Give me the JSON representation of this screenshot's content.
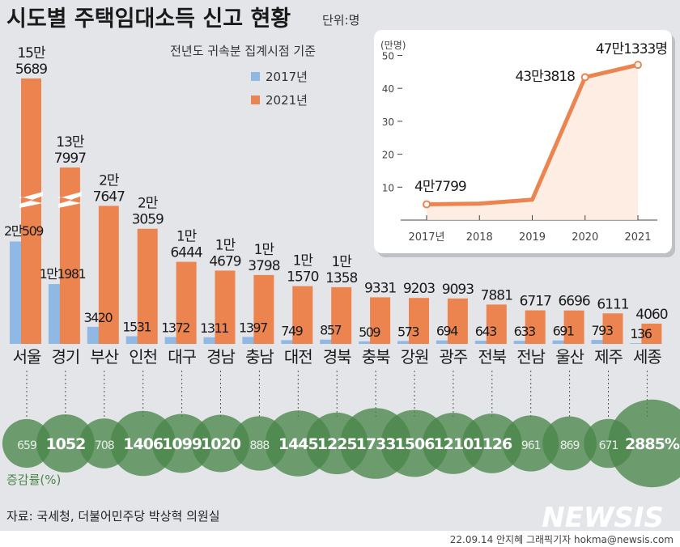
{
  "header": {
    "title": "시도별 주택임대소득 신고 현황",
    "unit": "단위:명",
    "subtitle": "전년도 귀속분 집계시점 기준"
  },
  "colors": {
    "y2017": "#8fb8e4",
    "y2021": "#ec8450",
    "bubble": "#4a864a",
    "background": "#e4e5e9"
  },
  "chart_data": [
    {
      "type": "bar",
      "title": "시도별 주택임대소득 신고 현황",
      "unit": "명",
      "legend": [
        "2017년",
        "2021년"
      ],
      "legend_position": "top-right",
      "categories": [
        "서울",
        "경기",
        "부산",
        "인천",
        "대구",
        "경남",
        "충남",
        "대전",
        "경북",
        "충북",
        "강원",
        "광주",
        "전북",
        "전남",
        "울산",
        "제주",
        "세종"
      ],
      "series": [
        {
          "name": "2017년",
          "values": [
            20509,
            11981,
            3420,
            1531,
            1372,
            1311,
            1397,
            749,
            857,
            509,
            573,
            694,
            643,
            633,
            691,
            793,
            136
          ],
          "labels": [
            "2만509",
            "1만1981",
            "3420",
            "1531",
            "1372",
            "1311",
            "1397",
            "749",
            "857",
            "509",
            "573",
            "694",
            "643",
            "633",
            "691",
            "793",
            "136"
          ]
        },
        {
          "name": "2021년",
          "values": [
            155689,
            137997,
            27647,
            23059,
            16444,
            14679,
            13798,
            11570,
            11358,
            9331,
            9203,
            9093,
            7881,
            6717,
            6696,
            6111,
            4060
          ],
          "labels": [
            [
              "15만",
              "5689"
            ],
            [
              "13만",
              "7997"
            ],
            [
              "2만",
              "7647"
            ],
            [
              "2만",
              "3059"
            ],
            [
              "1만",
              "6444"
            ],
            [
              "1만",
              "4679"
            ],
            [
              "1만",
              "3798"
            ],
            [
              "1만",
              "1570"
            ],
            [
              "1만",
              "1358"
            ],
            [
              "9331"
            ],
            [
              "9203"
            ],
            [
              "9093"
            ],
            [
              "7881"
            ],
            [
              "6717"
            ],
            [
              "6696"
            ],
            [
              "6111"
            ],
            [
              "4060"
            ]
          ]
        }
      ],
      "broken_axis_categories": [
        "서울",
        "경기"
      ],
      "growth_label": "증감률(%)",
      "growth_rate": [
        659,
        1052,
        708,
        1406,
        1099,
        1020,
        888,
        1445,
        1225,
        1733,
        1506,
        1210,
        1126,
        961,
        869,
        671,
        2885
      ],
      "growth_labels": [
        "659",
        "1052",
        "708",
        "1406",
        "1099",
        "1020",
        "888",
        "1445",
        "1225",
        "1733",
        "1506",
        "1210",
        "1126",
        "961",
        "869",
        "671",
        "2885%"
      ]
    },
    {
      "type": "line",
      "ylabel": "(만명)",
      "x": [
        "2017년",
        "2018",
        "2019",
        "2020",
        "2021"
      ],
      "values": [
        4.7799,
        5.0,
        6.2,
        43.3818,
        47.1333
      ],
      "point_labels": [
        "4만7799",
        "",
        "",
        "43만3818",
        "47만1333명"
      ],
      "ylim": [
        0,
        50
      ],
      "yticks": [
        10,
        20,
        30,
        40,
        50
      ]
    }
  ],
  "footer": {
    "source": "자료: 국세청, 더불어민주당 박상혁 의원실",
    "logo": "NEWSIS",
    "credit": "22.09.14 안지혜 그래픽기자 hokma@newsis.com"
  }
}
